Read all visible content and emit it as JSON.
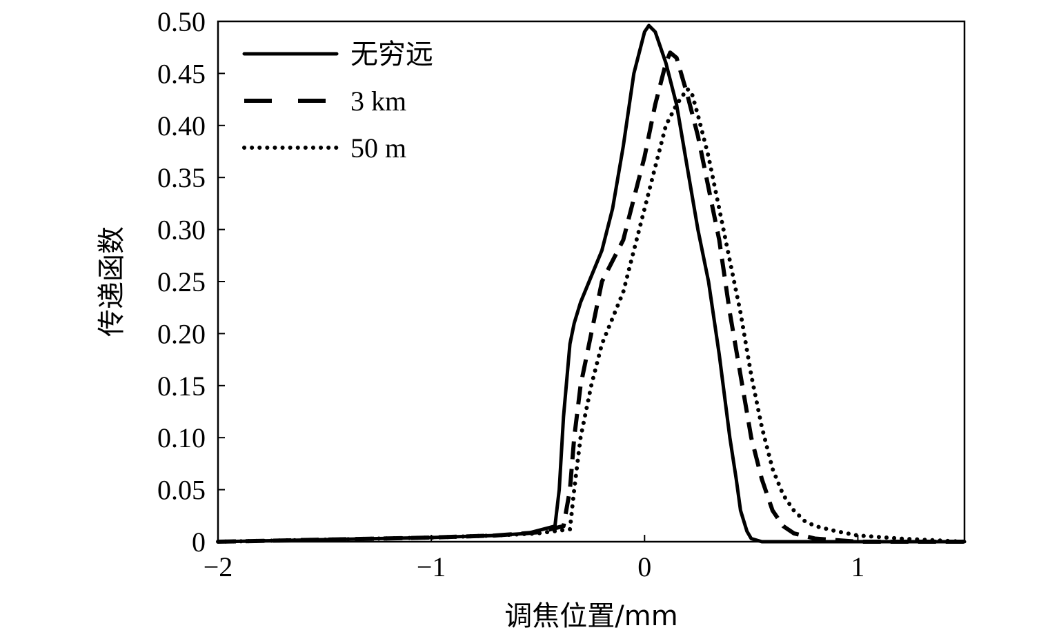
{
  "chart_data": {
    "type": "line",
    "title": "",
    "xlabel": "调焦位置/mm",
    "ylabel": "传递函数",
    "xlim": [
      -2,
      1.5
    ],
    "ylim": [
      0,
      0.5
    ],
    "xticks": [
      -2,
      -1,
      0,
      1
    ],
    "xtick_labels": [
      "−2",
      "−1",
      "0",
      "1"
    ],
    "yticks": [
      0,
      0.05,
      0.1,
      0.15,
      0.2,
      0.25,
      0.3,
      0.35,
      0.4,
      0.45,
      0.5
    ],
    "ytick_labels": [
      "0",
      "0.05",
      "0.10",
      "0.15",
      "0.20",
      "0.25",
      "0.30",
      "0.35",
      "0.40",
      "0.45",
      "0.50"
    ],
    "grid": false,
    "legend_position": "top-left",
    "series": [
      {
        "name": "无穷远",
        "style": "solid",
        "color": "#000000",
        "x": [
          -2,
          -1.5,
          -1,
          -0.7,
          -0.55,
          -0.42,
          -0.4,
          -0.38,
          -0.35,
          -0.33,
          -0.3,
          -0.26,
          -0.2,
          -0.15,
          -0.1,
          -0.05,
          0,
          0.02,
          0.05,
          0.1,
          0.15,
          0.2,
          0.25,
          0.3,
          0.35,
          0.4,
          0.43,
          0.45,
          0.48,
          0.5,
          0.55,
          0.6,
          1,
          1.5
        ],
        "y": [
          0,
          0.002,
          0.004,
          0.006,
          0.008,
          0.015,
          0.05,
          0.12,
          0.19,
          0.21,
          0.23,
          0.25,
          0.28,
          0.32,
          0.38,
          0.45,
          0.49,
          0.496,
          0.49,
          0.46,
          0.42,
          0.36,
          0.3,
          0.25,
          0.18,
          0.1,
          0.06,
          0.03,
          0.01,
          0.003,
          0,
          0,
          0,
          0
        ]
      },
      {
        "name": "3 km",
        "style": "dashed",
        "color": "#000000",
        "x": [
          -2,
          -1.5,
          -1,
          -0.7,
          -0.5,
          -0.38,
          -0.35,
          -0.33,
          -0.3,
          -0.25,
          -0.2,
          -0.1,
          -0.05,
          0,
          0.05,
          0.1,
          0.12,
          0.15,
          0.2,
          0.25,
          0.3,
          0.35,
          0.4,
          0.45,
          0.5,
          0.55,
          0.6,
          0.65,
          0.7,
          0.8,
          1,
          1.5
        ],
        "y": [
          0,
          0.002,
          0.004,
          0.006,
          0.009,
          0.015,
          0.05,
          0.1,
          0.15,
          0.2,
          0.25,
          0.29,
          0.33,
          0.37,
          0.42,
          0.46,
          0.47,
          0.465,
          0.43,
          0.39,
          0.34,
          0.29,
          0.22,
          0.16,
          0.1,
          0.06,
          0.03,
          0.015,
          0.008,
          0.003,
          0,
          0
        ]
      },
      {
        "name": "50 m",
        "style": "dotted",
        "color": "#000000",
        "x": [
          -2,
          -1.5,
          -1,
          -0.7,
          -0.5,
          -0.35,
          -0.33,
          -0.3,
          -0.25,
          -0.2,
          -0.1,
          -0.05,
          0,
          0.05,
          0.1,
          0.15,
          0.2,
          0.22,
          0.25,
          0.3,
          0.35,
          0.4,
          0.45,
          0.5,
          0.55,
          0.6,
          0.65,
          0.7,
          0.75,
          0.8,
          0.9,
          1,
          1.2,
          1.5
        ],
        "y": [
          0,
          0.002,
          0.004,
          0.006,
          0.008,
          0.012,
          0.05,
          0.1,
          0.15,
          0.19,
          0.24,
          0.28,
          0.32,
          0.36,
          0.4,
          0.42,
          0.435,
          0.432,
          0.41,
          0.37,
          0.32,
          0.27,
          0.22,
          0.16,
          0.11,
          0.07,
          0.045,
          0.03,
          0.02,
          0.015,
          0.01,
          0.006,
          0.003,
          0
        ]
      }
    ]
  }
}
